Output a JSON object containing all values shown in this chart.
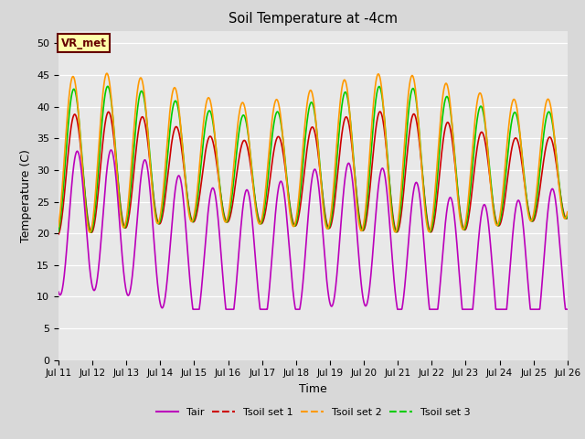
{
  "title": "Soil Temperature at -4cm",
  "xlabel": "Time",
  "ylabel": "Temperature (C)",
  "ylim": [
    0,
    52
  ],
  "yticks": [
    0,
    5,
    10,
    15,
    20,
    25,
    30,
    35,
    40,
    45,
    50
  ],
  "background_color": "#d8d8d8",
  "plot_background": "#e8e8e8",
  "line_colors": {
    "Tair": "#bb00bb",
    "Tsoil_set1": "#cc0000",
    "Tsoil_set2": "#ff9900",
    "Tsoil_set3": "#00cc00"
  },
  "legend_labels": [
    "Tair",
    "Tsoil set 1",
    "Tsoil set 2",
    "Tsoil set 3"
  ],
  "annotation_text": "VR_met",
  "annotation_color": "#660000",
  "annotation_bg": "#ffffaa",
  "date_start": 11,
  "date_end": 26,
  "points_per_day": 144
}
